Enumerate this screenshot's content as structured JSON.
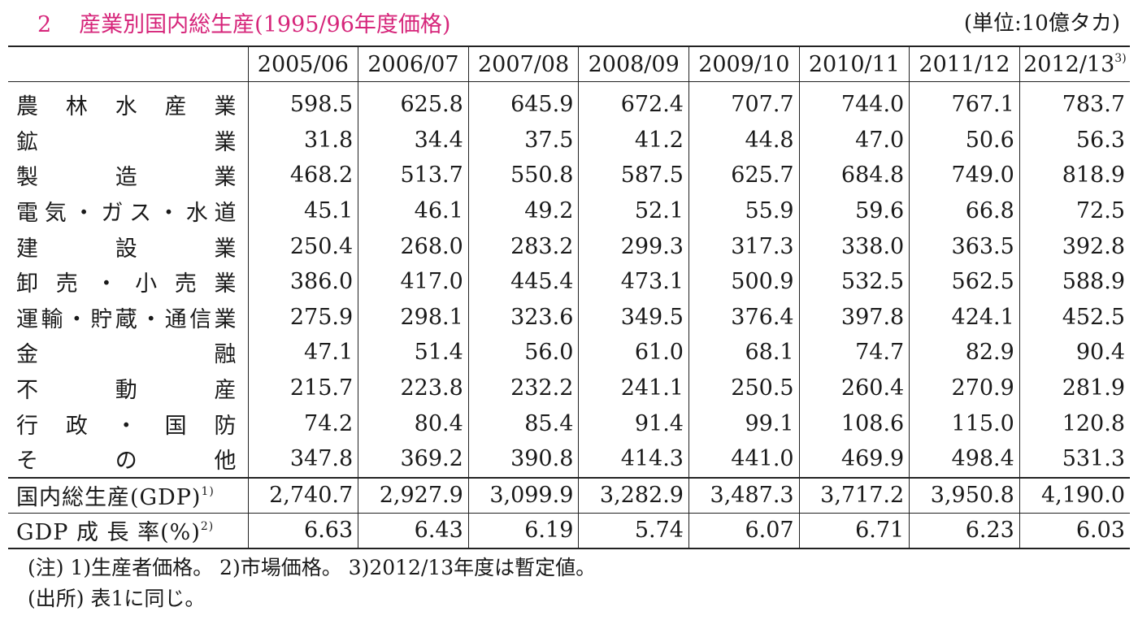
{
  "title": {
    "number": "2",
    "text": "産業別国内総生産(1995/96年度価格)",
    "unit": "(単位:10億タカ)",
    "accent_color": "#d6257a"
  },
  "table": {
    "columns": [
      {
        "label": "2005/06",
        "sup": ""
      },
      {
        "label": "2006/07",
        "sup": ""
      },
      {
        "label": "2007/08",
        "sup": ""
      },
      {
        "label": "2008/09",
        "sup": ""
      },
      {
        "label": "2009/10",
        "sup": ""
      },
      {
        "label": "2010/11",
        "sup": ""
      },
      {
        "label": "2011/12",
        "sup": ""
      },
      {
        "label": "2012/13",
        "sup": "3)"
      }
    ],
    "industry_rows": [
      {
        "label": "農林水産業",
        "values": [
          "598.5",
          "625.8",
          "645.9",
          "672.4",
          "707.7",
          "744.0",
          "767.1",
          "783.7"
        ]
      },
      {
        "label": "鉱業",
        "values": [
          "31.8",
          "34.4",
          "37.5",
          "41.2",
          "44.8",
          "47.0",
          "50.6",
          "56.3"
        ]
      },
      {
        "label": "製造業",
        "values": [
          "468.2",
          "513.7",
          "550.8",
          "587.5",
          "625.7",
          "684.8",
          "749.0",
          "818.9"
        ]
      },
      {
        "label": "電気・ガス・水道",
        "values": [
          "45.1",
          "46.1",
          "49.2",
          "52.1",
          "55.9",
          "59.6",
          "66.8",
          "72.5"
        ]
      },
      {
        "label": "建設業",
        "values": [
          "250.4",
          "268.0",
          "283.2",
          "299.3",
          "317.3",
          "338.0",
          "363.5",
          "392.8"
        ]
      },
      {
        "label": "卸売・小売業",
        "values": [
          "386.0",
          "417.0",
          "445.4",
          "473.1",
          "500.9",
          "532.5",
          "562.5",
          "588.9"
        ]
      },
      {
        "label": "運輸・貯蔵・通信業",
        "values": [
          "275.9",
          "298.1",
          "323.6",
          "349.5",
          "376.4",
          "397.8",
          "424.1",
          "452.5"
        ]
      },
      {
        "label": "金融",
        "values": [
          "47.1",
          "51.4",
          "56.0",
          "61.0",
          "68.1",
          "74.7",
          "82.9",
          "90.4"
        ]
      },
      {
        "label": "不動産",
        "values": [
          "215.7",
          "223.8",
          "232.2",
          "241.1",
          "250.5",
          "260.4",
          "270.9",
          "281.9"
        ]
      },
      {
        "label": "行政・国防",
        "values": [
          "74.2",
          "80.4",
          "85.4",
          "91.4",
          "99.1",
          "108.6",
          "115.0",
          "120.8"
        ]
      },
      {
        "label": "その他",
        "values": [
          "347.8",
          "369.2",
          "390.8",
          "414.3",
          "441.0",
          "469.9",
          "498.4",
          "531.3"
        ]
      }
    ],
    "gdp_row": {
      "label": "国内総生産(GDP)",
      "sup": "1)",
      "values": [
        "2,740.7",
        "2,927.9",
        "3,099.9",
        "3,282.9",
        "3,487.3",
        "3,717.2",
        "3,950.8",
        "4,190.0"
      ]
    },
    "growth_row": {
      "label": "GDP 成 長 率(%)",
      "sup": "2)",
      "values": [
        "6.63",
        "6.43",
        "6.19",
        "5.74",
        "6.07",
        "6.71",
        "6.23",
        "6.03"
      ]
    }
  },
  "notes": {
    "note": "(注) 1)生産者価格。 2)市場価格。 3)2012/13年度は暫定値。",
    "source": "(出所) 表1に同じ。"
  }
}
